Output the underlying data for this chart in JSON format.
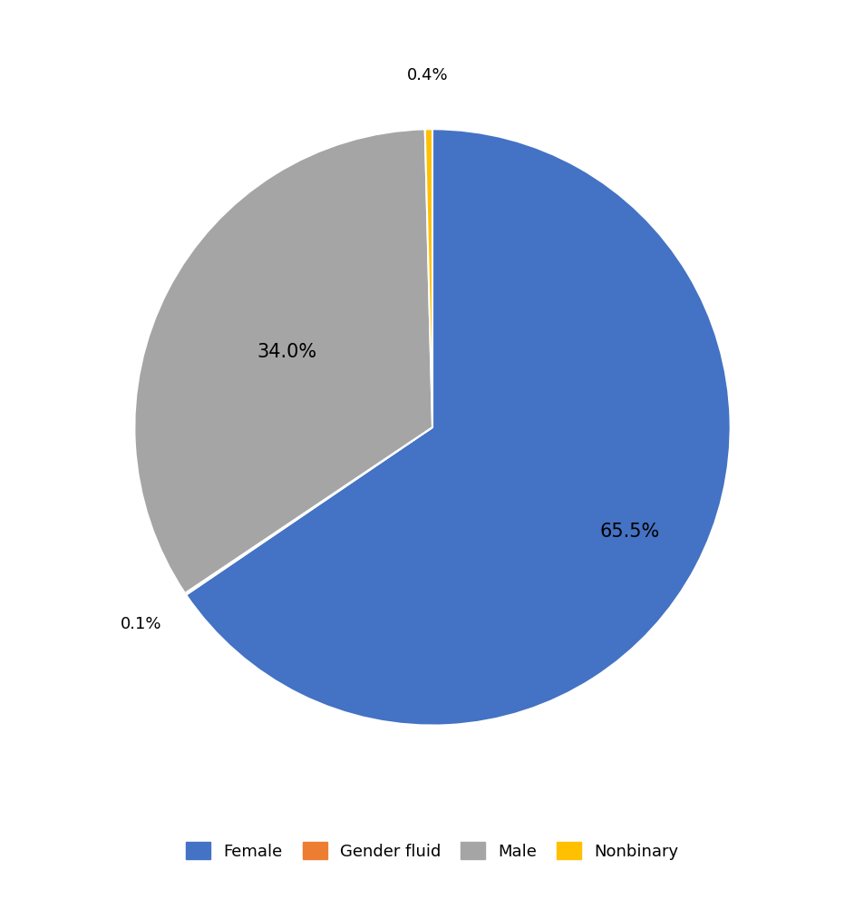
{
  "labels": [
    "Female",
    "Gender fluid",
    "Male",
    "Nonbinary"
  ],
  "values": [
    65.5,
    0.1,
    34.0,
    0.4
  ],
  "colors": [
    "#4472C4",
    "#ED7D31",
    "#A5A5A5",
    "#FFC000"
  ],
  "legend_labels": [
    "Female",
    "Gender fluid",
    "Male",
    "Nonbinary"
  ],
  "startangle": 90,
  "figsize": [
    9.54,
    10.02
  ],
  "dpi": 100,
  "pct_distances": [
    0.75,
    1.18,
    0.55,
    1.18
  ],
  "label_fontsizes": [
    15,
    13,
    15,
    13
  ]
}
